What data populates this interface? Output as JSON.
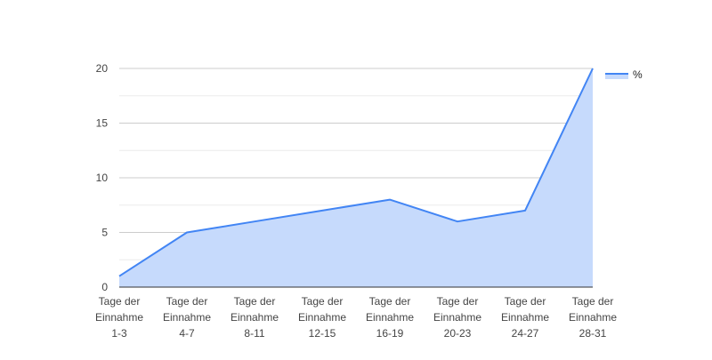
{
  "chart_data": {
    "type": "area",
    "categories": [
      [
        "Tage der",
        "Einnahme",
        "1-3"
      ],
      [
        "Tage der",
        "Einnahme",
        "4-7"
      ],
      [
        "Tage der",
        "Einnahme",
        "8-11"
      ],
      [
        "Tage der",
        "Einnahme",
        "12-15"
      ],
      [
        "Tage der",
        "Einnahme",
        "16-19"
      ],
      [
        "Tage der",
        "Einnahme",
        "20-23"
      ],
      [
        "Tage der",
        "Einnahme",
        "24-27"
      ],
      [
        "Tage der",
        "Einnahme",
        "28-31"
      ]
    ],
    "series": [
      {
        "name": "%",
        "values": [
          1,
          5,
          6,
          7,
          8,
          6,
          7,
          20
        ]
      }
    ],
    "ylim": [
      0,
      20
    ],
    "yticks": [
      "0",
      "5",
      "10",
      "15",
      "20"
    ],
    "title": "",
    "xlabel": "",
    "ylabel": "",
    "grid": true,
    "legend_position": "right",
    "colors": {
      "line": "#4285f4",
      "fill": "#c6dafc",
      "grid_major": "#cccccc",
      "grid_minor": "#ebebeb",
      "axis": "#333333"
    }
  }
}
